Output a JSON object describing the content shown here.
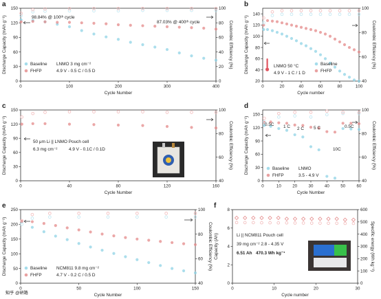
{
  "figure": {
    "colors": {
      "baseline": "#8fd3e6",
      "fhfp": "#e48a8a",
      "ce_baseline": "#bfe6f1",
      "ce_fhfp": "#f2b9b9",
      "thermometer": "#e05560"
    }
  },
  "chart_data": [
    {
      "panel": "a",
      "type": "scatter",
      "xlabel": "Cycle Number",
      "ylabel": "Discharge Capacity (mAh g⁻¹)",
      "y2label": "Coulombic Efficiency (%)",
      "xlim": [
        0,
        400
      ],
      "ylim": [
        0,
        150
      ],
      "y2lim": [
        0,
        100
      ],
      "xticks": [
        "0",
        "100",
        "200",
        "300",
        "400"
      ],
      "yticks": [
        "0",
        "30",
        "60",
        "90",
        "120",
        "150"
      ],
      "y2ticks": [
        "0",
        "20",
        "40",
        "60",
        "80",
        "100"
      ],
      "series": [
        {
          "name": "Baseline",
          "kind": "capacity",
          "x": [
            1,
            25,
            50,
            75,
            100,
            125,
            150,
            175,
            200,
            225,
            250,
            275,
            300,
            325,
            350,
            375,
            400
          ],
          "values": [
            126,
            125,
            122,
            117,
            112,
            104,
            97,
            91,
            86,
            80,
            75,
            70,
            65,
            58,
            52,
            47,
            43
          ]
        },
        {
          "name": "FHFP",
          "kind": "capacity",
          "x": [
            1,
            25,
            50,
            75,
            100,
            125,
            150,
            175,
            200,
            225,
            250,
            275,
            300,
            325,
            350,
            375,
            400
          ],
          "values": [
            122,
            123,
            122,
            121,
            121,
            120,
            119,
            118,
            116,
            115,
            114,
            113,
            112,
            111,
            110,
            109,
            107
          ]
        },
        {
          "name": "Baseline CE",
          "kind": "ce",
          "x": [
            1,
            25,
            50,
            100,
            150,
            200,
            250,
            300,
            350,
            400
          ],
          "values": [
            90,
            95,
            96,
            96.5,
            96.5,
            96.5,
            97,
            97,
            97,
            97
          ]
        },
        {
          "name": "FHFP CE",
          "kind": "ce",
          "x": [
            1,
            25,
            50,
            100,
            150,
            200,
            250,
            300,
            350,
            400
          ],
          "values": [
            93,
            98,
            99,
            99.5,
            99.6,
            99.6,
            99.7,
            99.7,
            99.7,
            99.7
          ]
        }
      ],
      "annotations": [
        "98.84% @ 100ᵗʰ cycle",
        "87.03% @ 400ᵗʰ cycle"
      ],
      "legend": {
        "entries": [
          "Baseline",
          "FHFP"
        ],
        "notes": [
          "LNMO 3 mg cm⁻²",
          "4.9 V - 0.5 C / 0.5 D"
        ],
        "placement": "bottom-left"
      }
    },
    {
      "panel": "b",
      "type": "scatter",
      "xlabel": "Cycle number",
      "ylabel": "Discharge Capacity (mAh g⁻¹)",
      "y2label": "Coulombic Efficiency (%)",
      "xlim": [
        0,
        100
      ],
      "ylim": [
        20,
        150
      ],
      "y2lim": [
        40,
        100
      ],
      "xticks": [
        "0",
        "20",
        "40",
        "60",
        "80",
        "100"
      ],
      "yticks": [
        "20",
        "40",
        "60",
        "80",
        "100",
        "120",
        "140"
      ],
      "y2ticks": [
        "40",
        "60",
        "80",
        "100"
      ],
      "series": [
        {
          "name": "Baseline",
          "kind": "capacity",
          "x": [
            1,
            5,
            10,
            15,
            20,
            25,
            30,
            35,
            40,
            45,
            50,
            55,
            60,
            65,
            70,
            75,
            80,
            85,
            90,
            95,
            100
          ],
          "values": [
            112,
            112,
            110,
            107,
            104,
            100,
            96,
            92,
            87,
            83,
            78,
            73,
            67,
            60,
            52,
            45,
            38,
            32,
            27,
            22,
            20
          ]
        },
        {
          "name": "FHFP",
          "kind": "capacity",
          "x": [
            1,
            5,
            10,
            15,
            20,
            25,
            30,
            35,
            40,
            45,
            50,
            55,
            60,
            65,
            70,
            75,
            80,
            85,
            90,
            95,
            100
          ],
          "values": [
            120,
            128,
            127,
            126,
            124,
            122,
            120,
            118,
            116,
            114,
            112,
            110,
            107,
            104,
            100,
            95,
            90,
            85,
            80,
            76,
            72
          ]
        },
        {
          "name": "Baseline CE",
          "kind": "ce",
          "x": [
            1,
            10,
            20,
            30,
            40,
            50,
            60,
            70,
            80,
            90,
            100
          ],
          "values": [
            88,
            94,
            95,
            95,
            95,
            95,
            95,
            95,
            95,
            95,
            95
          ]
        },
        {
          "name": "FHFP CE",
          "kind": "ce",
          "x": [
            1,
            10,
            20,
            30,
            40,
            50,
            60,
            70,
            80,
            90,
            100
          ],
          "values": [
            92,
            97,
            98,
            98,
            98,
            98,
            98,
            98,
            98,
            98,
            98
          ]
        }
      ],
      "annotations": [
        "LNMO 50 °C",
        "4.9 V - 1 C / 1 D"
      ],
      "legend": {
        "entries": [
          "Baseline",
          "FHFP"
        ],
        "placement": "bottom-right"
      }
    },
    {
      "panel": "c",
      "type": "scatter",
      "xlabel": "Cycle Number",
      "ylabel": "Discharge Capacity (mAh g⁻¹)",
      "y2label": "Coulombic Efficiency (%)",
      "xlim": [
        0,
        160
      ],
      "ylim": [
        0,
        150
      ],
      "y2lim": [
        40,
        100
      ],
      "xticks": [
        "0",
        "40",
        "80",
        "120",
        "160"
      ],
      "yticks": [
        "0",
        "30",
        "60",
        "90",
        "120",
        "150"
      ],
      "y2ticks": [
        "40",
        "60",
        "80",
        "100"
      ],
      "series": [
        {
          "name": "FHFP",
          "kind": "capacity",
          "x": [
            1,
            10,
            20,
            40,
            60,
            80,
            100,
            120,
            140,
            160
          ],
          "values": [
            120,
            121,
            121,
            120,
            119,
            118,
            117,
            115,
            113,
            112
          ]
        },
        {
          "name": "FHFP CE",
          "kind": "ce",
          "x": [
            1,
            10,
            20,
            40,
            60,
            80,
            100,
            120,
            140,
            160
          ],
          "values": [
            94,
            97,
            98,
            98.5,
            98.5,
            98.5,
            98.5,
            98,
            98,
            98
          ]
        }
      ],
      "annotations": [
        "50 μm Li || LNMO Pouch cell",
        "6.3 mg cm⁻²",
        "4.9 V - 0.1C / 0.1D"
      ]
    },
    {
      "panel": "d",
      "type": "scatter",
      "xlabel": "Cycle Number",
      "ylabel": "Discharge Capacity (mAh g⁻¹)",
      "y2label": "Coulombic Efficiency (%)",
      "xlim": [
        0,
        60
      ],
      "ylim": [
        0,
        160
      ],
      "y2lim": [
        40,
        100
      ],
      "xticks": [
        "0",
        "10",
        "20",
        "30",
        "40",
        "50",
        "60"
      ],
      "yticks": [
        "0",
        "30",
        "60",
        "90",
        "120",
        "150"
      ],
      "y2ticks": [
        "40",
        "60",
        "80",
        "100"
      ],
      "series": [
        {
          "name": "Baseline",
          "kind": "capacity",
          "x": [
            1,
            5,
            10,
            15,
            20,
            25,
            30,
            35,
            40,
            45,
            50,
            55,
            60
          ],
          "values": [
            125,
            123,
            118,
            114,
            104,
            99,
            77,
            70,
            10,
            6,
            118,
            117,
            116
          ]
        },
        {
          "name": "FHFP",
          "kind": "capacity",
          "x": [
            1,
            5,
            10,
            15,
            20,
            25,
            30,
            35,
            40,
            45,
            50,
            55,
            60
          ],
          "values": [
            132,
            133,
            131,
            130,
            126,
            125,
            121,
            119,
            111,
            110,
            130,
            130,
            129
          ]
        },
        {
          "name": "Baseline CE",
          "kind": "ce",
          "x": [
            1,
            10,
            20,
            30,
            40,
            50,
            60
          ],
          "values": [
            90,
            94,
            95,
            94,
            96,
            97,
            97
          ]
        },
        {
          "name": "FHFP CE",
          "kind": "ce",
          "x": [
            1,
            10,
            20,
            30,
            40,
            50,
            60
          ],
          "values": [
            93,
            97,
            98,
            98,
            99,
            98,
            98
          ]
        }
      ],
      "annotations": [
        "0.5C",
        "1 C",
        "2 C",
        "5 C",
        "10C",
        "0.5C"
      ],
      "legend": {
        "entries": [
          "Baseline",
          "FHFP"
        ],
        "notes": [
          "LNMO",
          "3.5 - 4.9 V"
        ],
        "placement": "bottom-left"
      }
    },
    {
      "panel": "e",
      "type": "scatter",
      "xlabel": "Cycle Number",
      "ylabel": "Discharge Capacity (mAh g⁻¹)",
      "y2label": "Coulombic Efficiency (%)",
      "xlim": [
        0,
        150
      ],
      "ylim": [
        0,
        250
      ],
      "y2lim": [
        40,
        100
      ],
      "xticks": [
        "0",
        "50",
        "100",
        "150"
      ],
      "yticks": [
        "0",
        "50",
        "100",
        "150",
        "200",
        "250"
      ],
      "y2ticks": [
        "40",
        "60",
        "80",
        "100"
      ],
      "series": [
        {
          "name": "Baseline",
          "kind": "capacity",
          "x": [
            1,
            10,
            20,
            30,
            40,
            50,
            60,
            70,
            80,
            90,
            100,
            110,
            120,
            130,
            140,
            150
          ],
          "values": [
            208,
            190,
            175,
            160,
            148,
            135,
            123,
            112,
            101,
            90,
            80,
            70,
            60,
            50,
            42,
            35
          ]
        },
        {
          "name": "FHFP",
          "kind": "capacity",
          "x": [
            1,
            10,
            20,
            30,
            40,
            50,
            60,
            70,
            80,
            90,
            100,
            110,
            120,
            130,
            140,
            150
          ],
          "values": [
            210,
            209,
            203,
            196,
            188,
            181,
            174,
            167,
            161,
            155,
            150,
            146,
            142,
            138,
            134,
            131
          ]
        },
        {
          "name": "Baseline CE",
          "kind": "ce",
          "x": [
            1,
            10,
            25,
            50,
            75,
            100,
            125,
            150
          ],
          "values": [
            88,
            93,
            94,
            94,
            94,
            94,
            94,
            94
          ]
        },
        {
          "name": "FHFP CE",
          "kind": "ce",
          "x": [
            1,
            10,
            25,
            50,
            75,
            100,
            125,
            150
          ],
          "values": [
            91,
            96,
            97,
            97,
            97,
            97,
            97,
            97
          ]
        }
      ],
      "legend": {
        "entries": [
          "Baseline",
          "FHFP"
        ],
        "notes": [
          "NCM811 9.8 mg cm⁻²",
          "4.7 V - 0.2 C / 0.5 D"
        ],
        "placement": "bottom-left"
      }
    },
    {
      "panel": "f",
      "type": "scatter",
      "xlabel": "Cycle number",
      "ylabel": "Capacity (Ah)",
      "y2label": "Specific energy (Wh kg⁻¹)",
      "xlim": [
        0,
        30
      ],
      "ylim": [
        0,
        8
      ],
      "y2lim": [
        0,
        600
      ],
      "xticks": [
        "0",
        "10",
        "20",
        "30"
      ],
      "yticks": [
        "0",
        "2",
        "4",
        "6",
        "8"
      ],
      "y2ticks": [
        "0",
        "100",
        "200",
        "300",
        "400",
        "500",
        "600"
      ],
      "series": [
        {
          "name": "Capacity",
          "kind": "capacity",
          "x": [
            1,
            3,
            5,
            7,
            9,
            11,
            13,
            15,
            17,
            19,
            21,
            23,
            25,
            27,
            29
          ],
          "values": [
            7.1,
            7.1,
            7.1,
            7.1,
            7.1,
            7.1,
            7.0,
            7.0,
            7.0,
            7.0,
            7.0,
            7.0,
            7.0,
            6.9,
            6.9
          ]
        },
        {
          "name": "Specific energy",
          "kind": "ce",
          "x": [
            1,
            3,
            5,
            7,
            9,
            11,
            13,
            15,
            17,
            19,
            21,
            23,
            25,
            27,
            29
          ],
          "values": [
            495,
            494,
            494,
            493,
            493,
            492,
            492,
            491,
            491,
            490,
            490,
            489,
            489,
            488,
            488
          ]
        }
      ],
      "annotations": [
        "Li || NCM811 Pouch cell",
        "39 mg cm⁻² 2.8 - 4.35 V",
        "6.51 Ah",
        "470.3 Wh kg⁻¹"
      ]
    }
  ]
}
